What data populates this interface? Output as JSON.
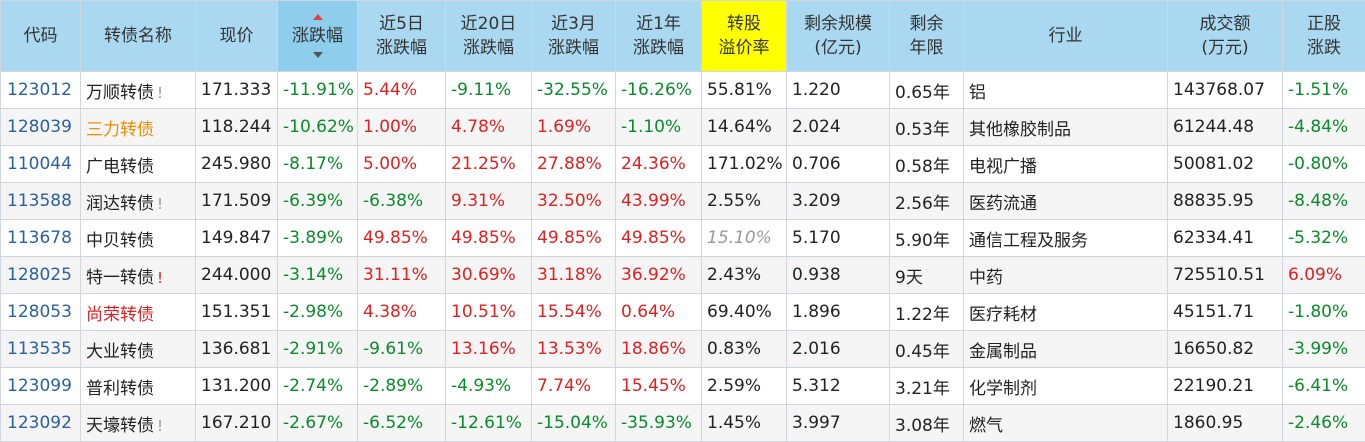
{
  "headers": [
    {
      "line1": "代码",
      "line2": ""
    },
    {
      "line1": "转债名称",
      "line2": ""
    },
    {
      "line1": "现价",
      "line2": ""
    },
    {
      "line1": "涨跌幅",
      "line2": ""
    },
    {
      "line1": "近5日",
      "line2": "涨跌幅"
    },
    {
      "line1": "近20日",
      "line2": "涨跌幅"
    },
    {
      "line1": "近3月",
      "line2": "涨跌幅"
    },
    {
      "line1": "近1年",
      "line2": "涨跌幅"
    },
    {
      "line1": "转股",
      "line2": "溢价率"
    },
    {
      "line1": "剩余规模",
      "line2": "(亿元)"
    },
    {
      "line1": "剩余",
      "line2": "年限"
    },
    {
      "line1": "行业",
      "line2": ""
    },
    {
      "line1": "成交额",
      "line2": "(万元)"
    },
    {
      "line1": "正股",
      "line2": "涨跌"
    }
  ],
  "colors": {
    "header_bg": "#a9d8f0",
    "highlight_header_bg": "#ffff00",
    "up": "#e02020",
    "down": "#0a8a2a",
    "code_link": "#2b5f9e",
    "name_orange": "#f08c00"
  },
  "rows": [
    {
      "code": "123012",
      "name": "万顺转债",
      "name_color": "",
      "mark": "!",
      "mark_color": "gray",
      "price": "171.333",
      "chg": "-11.91%",
      "chg_color": "green",
      "d5": "5.44%",
      "d5_color": "red",
      "d20": "-9.11%",
      "d20_color": "green",
      "m3": "-32.55%",
      "m3_color": "green",
      "y1": "-16.26%",
      "y1_color": "green",
      "premium": "55.81%",
      "premium_style": "",
      "scale": "1.220",
      "years": "0.65年",
      "industry": "铝",
      "amount": "143768.07",
      "stock_chg": "-1.51%",
      "stock_chg_color": "green"
    },
    {
      "code": "128039",
      "name": "三力转债",
      "name_color": "orange",
      "mark": "",
      "mark_color": "",
      "price": "118.244",
      "chg": "-10.62%",
      "chg_color": "green",
      "d5": "1.00%",
      "d5_color": "red",
      "d20": "4.78%",
      "d20_color": "red",
      "m3": "1.69%",
      "m3_color": "red",
      "y1": "-1.10%",
      "y1_color": "green",
      "premium": "14.64%",
      "premium_style": "",
      "scale": "2.024",
      "years": "0.53年",
      "industry": "其他橡胶制品",
      "amount": "61244.48",
      "stock_chg": "-4.84%",
      "stock_chg_color": "green"
    },
    {
      "code": "110044",
      "name": "广电转债",
      "name_color": "",
      "mark": "",
      "mark_color": "",
      "price": "245.980",
      "chg": "-8.17%",
      "chg_color": "green",
      "d5": "5.00%",
      "d5_color": "red",
      "d20": "21.25%",
      "d20_color": "red",
      "m3": "27.88%",
      "m3_color": "red",
      "y1": "24.36%",
      "y1_color": "red",
      "premium": "171.02%",
      "premium_style": "",
      "scale": "0.706",
      "years": "0.58年",
      "industry": "电视广播",
      "amount": "50081.02",
      "stock_chg": "-0.80%",
      "stock_chg_color": "green"
    },
    {
      "code": "113588",
      "name": "润达转债",
      "name_color": "",
      "mark": "!",
      "mark_color": "gray",
      "price": "171.509",
      "chg": "-6.39%",
      "chg_color": "green",
      "d5": "-6.38%",
      "d5_color": "green",
      "d20": "9.31%",
      "d20_color": "red",
      "m3": "32.50%",
      "m3_color": "red",
      "y1": "43.99%",
      "y1_color": "red",
      "premium": "2.55%",
      "premium_style": "",
      "scale": "3.209",
      "years": "2.56年",
      "industry": "医药流通",
      "amount": "88835.95",
      "stock_chg": "-8.48%",
      "stock_chg_color": "green"
    },
    {
      "code": "113678",
      "name": "中贝转债",
      "name_color": "",
      "mark": "",
      "mark_color": "",
      "price": "149.847",
      "chg": "-3.89%",
      "chg_color": "green",
      "d5": "49.85%",
      "d5_color": "red",
      "d20": "49.85%",
      "d20_color": "red",
      "m3": "49.85%",
      "m3_color": "red",
      "y1": "49.85%",
      "y1_color": "red",
      "premium": "15.10%",
      "premium_style": "italic-gray",
      "scale": "5.170",
      "years": "5.90年",
      "industry": "通信工程及服务",
      "amount": "62334.41",
      "stock_chg": "-5.32%",
      "stock_chg_color": "green"
    },
    {
      "code": "128025",
      "name": "特一转债",
      "name_color": "",
      "mark": "!",
      "mark_color": "red",
      "price": "244.000",
      "chg": "-3.14%",
      "chg_color": "green",
      "d5": "31.11%",
      "d5_color": "red",
      "d20": "30.69%",
      "d20_color": "red",
      "m3": "31.18%",
      "m3_color": "red",
      "y1": "36.92%",
      "y1_color": "red",
      "premium": "2.43%",
      "premium_style": "",
      "scale": "0.938",
      "years": "9天",
      "industry": "中药",
      "amount": "725510.51",
      "stock_chg": "6.09%",
      "stock_chg_color": "red"
    },
    {
      "code": "128053",
      "name": "尚荣转债",
      "name_color": "red",
      "mark": "",
      "mark_color": "",
      "price": "151.351",
      "chg": "-2.98%",
      "chg_color": "green",
      "d5": "4.38%",
      "d5_color": "red",
      "d20": "10.51%",
      "d20_color": "red",
      "m3": "15.54%",
      "m3_color": "red",
      "y1": "0.64%",
      "y1_color": "red",
      "premium": "69.40%",
      "premium_style": "",
      "scale": "1.896",
      "years": "1.22年",
      "industry": "医疗耗材",
      "amount": "45151.71",
      "stock_chg": "-1.80%",
      "stock_chg_color": "green"
    },
    {
      "code": "113535",
      "name": "大业转债",
      "name_color": "",
      "mark": "",
      "mark_color": "",
      "price": "136.681",
      "chg": "-2.91%",
      "chg_color": "green",
      "d5": "-9.61%",
      "d5_color": "green",
      "d20": "13.16%",
      "d20_color": "red",
      "m3": "13.53%",
      "m3_color": "red",
      "y1": "18.86%",
      "y1_color": "red",
      "premium": "0.83%",
      "premium_style": "",
      "scale": "2.016",
      "years": "0.45年",
      "industry": "金属制品",
      "amount": "16650.82",
      "stock_chg": "-3.99%",
      "stock_chg_color": "green"
    },
    {
      "code": "123099",
      "name": "普利转债",
      "name_color": "",
      "mark": "",
      "mark_color": "",
      "price": "131.200",
      "chg": "-2.74%",
      "chg_color": "green",
      "d5": "-2.89%",
      "d5_color": "green",
      "d20": "-4.93%",
      "d20_color": "green",
      "m3": "7.74%",
      "m3_color": "red",
      "y1": "15.45%",
      "y1_color": "red",
      "premium": "2.59%",
      "premium_style": "",
      "scale": "5.312",
      "years": "3.21年",
      "industry": "化学制剂",
      "amount": "22190.21",
      "stock_chg": "-6.41%",
      "stock_chg_color": "green"
    },
    {
      "code": "123092",
      "name": "天壕转债",
      "name_color": "",
      "mark": "!",
      "mark_color": "gray",
      "price": "167.210",
      "chg": "-2.67%",
      "chg_color": "green",
      "d5": "-6.52%",
      "d5_color": "green",
      "d20": "-12.61%",
      "d20_color": "green",
      "m3": "-15.04%",
      "m3_color": "green",
      "y1": "-35.93%",
      "y1_color": "green",
      "premium": "1.45%",
      "premium_style": "",
      "scale": "3.997",
      "years": "3.08年",
      "industry": "燃气",
      "amount": "1860.95",
      "stock_chg": "-2.46%",
      "stock_chg_color": "green"
    }
  ]
}
